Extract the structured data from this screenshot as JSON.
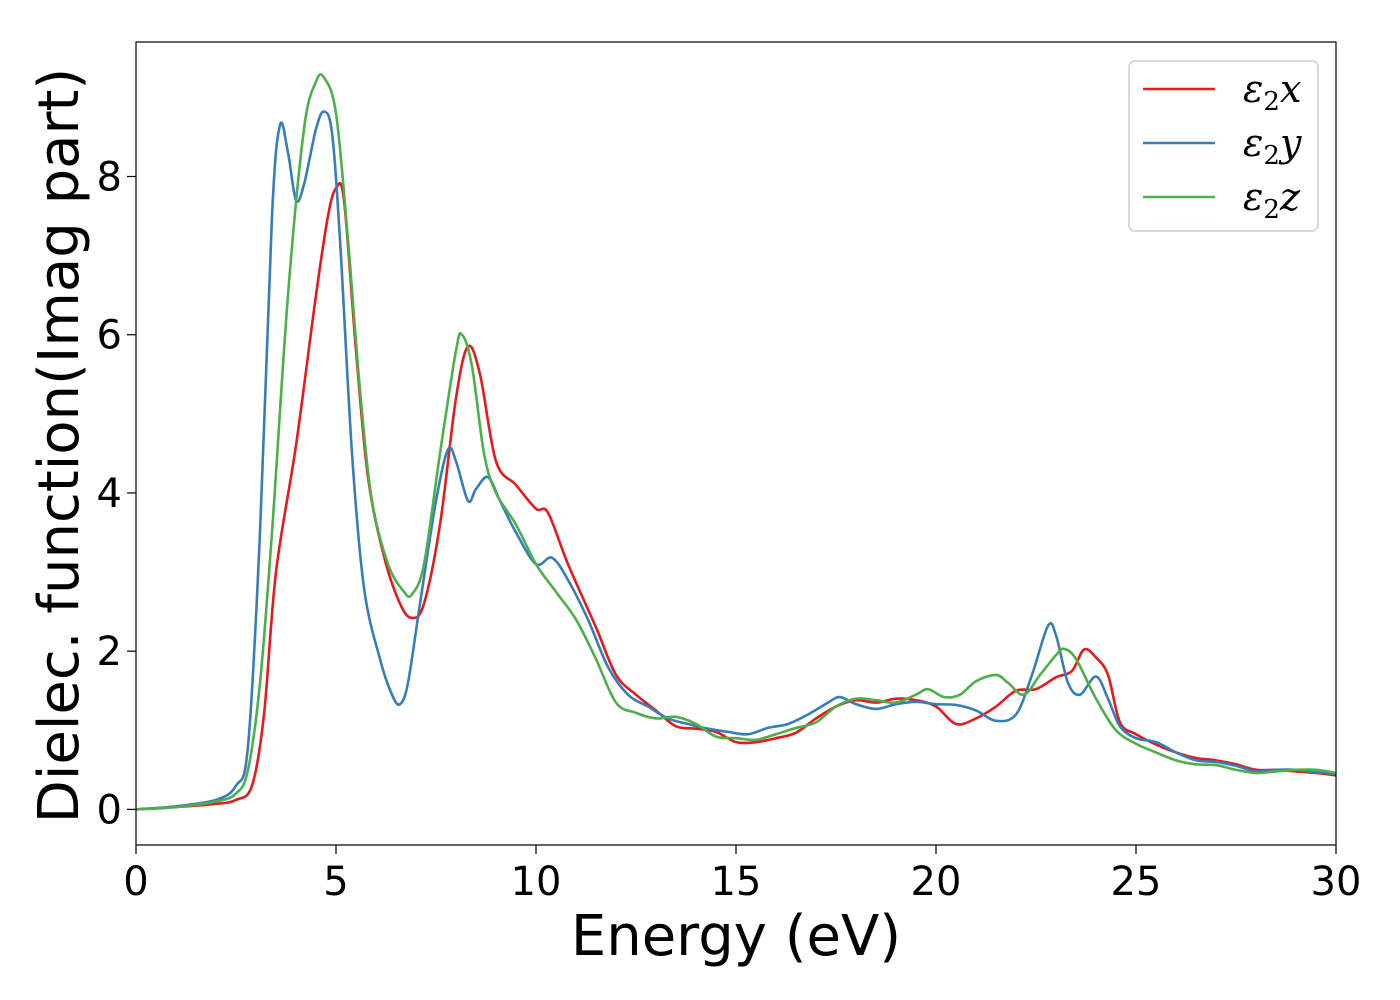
{
  "chart_data": {
    "type": "line",
    "title": "",
    "xlabel": "Energy (eV)",
    "ylabel": "Dielec. function(Imag part)",
    "xlim": [
      0,
      30
    ],
    "ylim": [
      -0.45,
      9.7
    ],
    "xticks": [
      0,
      5,
      10,
      15,
      20,
      25,
      30
    ],
    "yticks": [
      0,
      2,
      4,
      6,
      8
    ],
    "grid": false,
    "legend_position": "top-right",
    "series": [
      {
        "name": "ε2x",
        "legend_base": "ε",
        "legend_sub": "2",
        "legend_suffix": "x",
        "color": "#e41a1c",
        "points": [
          [
            0,
            0
          ],
          [
            1,
            0.03
          ],
          [
            2,
            0.07
          ],
          [
            2.5,
            0.12
          ],
          [
            2.9,
            0.3
          ],
          [
            3.2,
            1.2
          ],
          [
            3.5,
            3.0
          ],
          [
            4.0,
            4.6
          ],
          [
            4.5,
            6.5
          ],
          [
            4.8,
            7.5
          ],
          [
            5.0,
            7.85
          ],
          [
            5.2,
            7.7
          ],
          [
            5.5,
            5.8
          ],
          [
            5.8,
            4.2
          ],
          [
            6.2,
            3.2
          ],
          [
            6.6,
            2.6
          ],
          [
            6.9,
            2.42
          ],
          [
            7.2,
            2.6
          ],
          [
            7.6,
            3.6
          ],
          [
            8.0,
            5.2
          ],
          [
            8.3,
            5.85
          ],
          [
            8.6,
            5.5
          ],
          [
            9.0,
            4.4
          ],
          [
            9.5,
            4.1
          ],
          [
            10.0,
            3.8
          ],
          [
            10.3,
            3.75
          ],
          [
            10.8,
            3.1
          ],
          [
            11.5,
            2.3
          ],
          [
            12.0,
            1.7
          ],
          [
            12.5,
            1.45
          ],
          [
            13.0,
            1.25
          ],
          [
            13.5,
            1.05
          ],
          [
            14.0,
            1.02
          ],
          [
            14.5,
            0.98
          ],
          [
            15.0,
            0.85
          ],
          [
            15.5,
            0.85
          ],
          [
            16.0,
            0.9
          ],
          [
            16.5,
            0.97
          ],
          [
            17.0,
            1.15
          ],
          [
            17.5,
            1.3
          ],
          [
            18.0,
            1.38
          ],
          [
            18.5,
            1.35
          ],
          [
            19.0,
            1.4
          ],
          [
            19.5,
            1.38
          ],
          [
            20.0,
            1.3
          ],
          [
            20.5,
            1.08
          ],
          [
            21.0,
            1.15
          ],
          [
            21.5,
            1.3
          ],
          [
            22.0,
            1.5
          ],
          [
            22.5,
            1.52
          ],
          [
            23.0,
            1.67
          ],
          [
            23.4,
            1.75
          ],
          [
            23.7,
            2.02
          ],
          [
            24.0,
            1.92
          ],
          [
            24.3,
            1.7
          ],
          [
            24.6,
            1.1
          ],
          [
            25.0,
            0.95
          ],
          [
            25.5,
            0.82
          ],
          [
            26.0,
            0.72
          ],
          [
            26.5,
            0.65
          ],
          [
            27.0,
            0.62
          ],
          [
            27.5,
            0.57
          ],
          [
            28.0,
            0.5
          ],
          [
            28.5,
            0.5
          ],
          [
            29.0,
            0.48
          ],
          [
            29.5,
            0.46
          ],
          [
            30.0,
            0.43
          ]
        ]
      },
      {
        "name": "ε2y",
        "legend_base": "ε",
        "legend_sub": "2",
        "legend_suffix": "y",
        "color": "#377eb8",
        "points": [
          [
            0,
            0
          ],
          [
            1,
            0.04
          ],
          [
            2,
            0.12
          ],
          [
            2.5,
            0.3
          ],
          [
            2.8,
            0.8
          ],
          [
            3.1,
            3.5
          ],
          [
            3.4,
            7.5
          ],
          [
            3.6,
            8.65
          ],
          [
            3.8,
            8.3
          ],
          [
            4.0,
            7.7
          ],
          [
            4.2,
            7.9
          ],
          [
            4.5,
            8.6
          ],
          [
            4.7,
            8.82
          ],
          [
            4.9,
            8.55
          ],
          [
            5.1,
            7.2
          ],
          [
            5.4,
            4.5
          ],
          [
            5.7,
            2.8
          ],
          [
            6.1,
            1.9
          ],
          [
            6.4,
            1.45
          ],
          [
            6.6,
            1.33
          ],
          [
            6.8,
            1.6
          ],
          [
            7.1,
            2.6
          ],
          [
            7.5,
            3.9
          ],
          [
            7.8,
            4.55
          ],
          [
            8.0,
            4.4
          ],
          [
            8.3,
            3.9
          ],
          [
            8.5,
            4.05
          ],
          [
            8.8,
            4.2
          ],
          [
            9.1,
            3.9
          ],
          [
            9.5,
            3.5
          ],
          [
            10.0,
            3.1
          ],
          [
            10.4,
            3.18
          ],
          [
            10.8,
            2.9
          ],
          [
            11.3,
            2.4
          ],
          [
            11.8,
            1.8
          ],
          [
            12.3,
            1.45
          ],
          [
            12.8,
            1.3
          ],
          [
            13.3,
            1.15
          ],
          [
            13.8,
            1.08
          ],
          [
            14.3,
            1.02
          ],
          [
            14.8,
            0.98
          ],
          [
            15.3,
            0.95
          ],
          [
            15.8,
            1.03
          ],
          [
            16.3,
            1.08
          ],
          [
            16.8,
            1.2
          ],
          [
            17.3,
            1.35
          ],
          [
            17.6,
            1.42
          ],
          [
            18.0,
            1.33
          ],
          [
            18.5,
            1.27
          ],
          [
            19.0,
            1.33
          ],
          [
            19.5,
            1.36
          ],
          [
            20.0,
            1.33
          ],
          [
            20.5,
            1.32
          ],
          [
            21.0,
            1.25
          ],
          [
            21.5,
            1.12
          ],
          [
            22.0,
            1.2
          ],
          [
            22.4,
            1.7
          ],
          [
            22.8,
            2.32
          ],
          [
            23.0,
            2.2
          ],
          [
            23.3,
            1.6
          ],
          [
            23.6,
            1.45
          ],
          [
            24.0,
            1.68
          ],
          [
            24.3,
            1.4
          ],
          [
            24.6,
            1.05
          ],
          [
            25.0,
            0.9
          ],
          [
            25.5,
            0.85
          ],
          [
            26.0,
            0.72
          ],
          [
            26.5,
            0.62
          ],
          [
            27.0,
            0.6
          ],
          [
            27.5,
            0.55
          ],
          [
            28.0,
            0.48
          ],
          [
            28.5,
            0.5
          ],
          [
            29.0,
            0.5
          ],
          [
            29.5,
            0.47
          ],
          [
            30.0,
            0.45
          ]
        ]
      },
      {
        "name": "ε2z",
        "legend_base": "ε",
        "legend_sub": "2",
        "legend_suffix": "z",
        "color": "#4daf4a",
        "points": [
          [
            0,
            0
          ],
          [
            1,
            0.03
          ],
          [
            2,
            0.1
          ],
          [
            2.5,
            0.2
          ],
          [
            2.8,
            0.5
          ],
          [
            3.1,
            1.6
          ],
          [
            3.4,
            3.5
          ],
          [
            3.8,
            6.5
          ],
          [
            4.2,
            8.6
          ],
          [
            4.5,
            9.2
          ],
          [
            4.7,
            9.25
          ],
          [
            5.0,
            8.8
          ],
          [
            5.3,
            7.2
          ],
          [
            5.6,
            5.3
          ],
          [
            5.9,
            3.9
          ],
          [
            6.3,
            3.1
          ],
          [
            6.7,
            2.75
          ],
          [
            6.9,
            2.72
          ],
          [
            7.2,
            3.1
          ],
          [
            7.6,
            4.5
          ],
          [
            8.0,
            5.8
          ],
          [
            8.15,
            6.0
          ],
          [
            8.4,
            5.6
          ],
          [
            8.7,
            4.5
          ],
          [
            9.0,
            4.0
          ],
          [
            9.5,
            3.6
          ],
          [
            10.0,
            3.1
          ],
          [
            10.5,
            2.75
          ],
          [
            11.0,
            2.4
          ],
          [
            11.5,
            1.9
          ],
          [
            12.0,
            1.35
          ],
          [
            12.5,
            1.22
          ],
          [
            13.0,
            1.15
          ],
          [
            13.5,
            1.17
          ],
          [
            14.0,
            1.08
          ],
          [
            14.5,
            0.92
          ],
          [
            15.0,
            0.9
          ],
          [
            15.5,
            0.88
          ],
          [
            16.0,
            0.95
          ],
          [
            16.5,
            1.03
          ],
          [
            17.0,
            1.1
          ],
          [
            17.5,
            1.3
          ],
          [
            18.0,
            1.4
          ],
          [
            18.5,
            1.38
          ],
          [
            19.0,
            1.35
          ],
          [
            19.5,
            1.45
          ],
          [
            19.8,
            1.52
          ],
          [
            20.2,
            1.42
          ],
          [
            20.6,
            1.45
          ],
          [
            21.0,
            1.62
          ],
          [
            21.5,
            1.7
          ],
          [
            21.8,
            1.6
          ],
          [
            22.2,
            1.45
          ],
          [
            22.6,
            1.7
          ],
          [
            23.0,
            1.95
          ],
          [
            23.2,
            2.03
          ],
          [
            23.5,
            1.9
          ],
          [
            24.0,
            1.4
          ],
          [
            24.5,
            1.0
          ],
          [
            25.0,
            0.83
          ],
          [
            25.5,
            0.72
          ],
          [
            26.0,
            0.62
          ],
          [
            26.5,
            0.57
          ],
          [
            27.0,
            0.56
          ],
          [
            27.5,
            0.5
          ],
          [
            28.0,
            0.46
          ],
          [
            28.5,
            0.48
          ],
          [
            29.0,
            0.5
          ],
          [
            29.5,
            0.5
          ],
          [
            30.0,
            0.46
          ]
        ]
      }
    ]
  }
}
